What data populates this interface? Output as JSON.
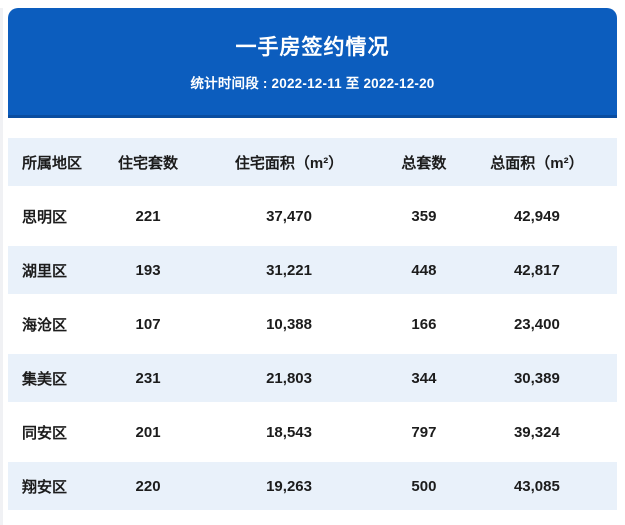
{
  "header": {
    "title": "一手房签约情况",
    "subtitle": "统计时间段 : 2022-12-11 至 2022-12-20"
  },
  "chart_data": {
    "type": "table",
    "title": "一手房签约情况",
    "subtitle": "统计时间段 : 2022-12-11 至 2022-12-20",
    "columns": [
      "所属地区",
      "住宅套数",
      "住宅面积（m²）",
      "总套数",
      "总面积（m²）"
    ],
    "rows": [
      [
        "思明区",
        "221",
        "37,470",
        "359",
        "42,949"
      ],
      [
        "湖里区",
        "193",
        "31,221",
        "448",
        "42,817"
      ],
      [
        "海沧区",
        "107",
        "10,388",
        "166",
        "23,400"
      ],
      [
        "集美区",
        "231",
        "21,803",
        "344",
        "30,389"
      ],
      [
        "同安区",
        "201",
        "18,543",
        "797",
        "39,324"
      ],
      [
        "翔安区",
        "220",
        "19,263",
        "500",
        "43,085"
      ]
    ]
  },
  "colors": {
    "header_bg": "#0c5dbe",
    "header_border": "#0a4da0",
    "row_alt_bg": "#e9f1fa",
    "text": "#1c1c1c"
  }
}
